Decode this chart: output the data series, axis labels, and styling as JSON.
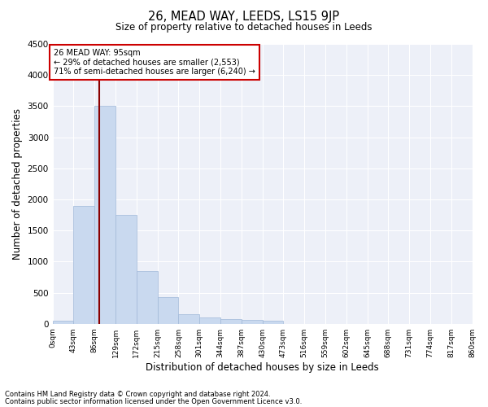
{
  "title": "26, MEAD WAY, LEEDS, LS15 9JP",
  "subtitle": "Size of property relative to detached houses in Leeds",
  "xlabel": "Distribution of detached houses by size in Leeds",
  "ylabel": "Number of detached properties",
  "bin_labels": [
    "0sqm",
    "43sqm",
    "86sqm",
    "129sqm",
    "172sqm",
    "215sqm",
    "258sqm",
    "301sqm",
    "344sqm",
    "387sqm",
    "430sqm",
    "473sqm",
    "516sqm",
    "559sqm",
    "602sqm",
    "645sqm",
    "688sqm",
    "731sqm",
    "774sqm",
    "817sqm",
    "860sqm"
  ],
  "bar_values": [
    50,
    1900,
    3500,
    1750,
    850,
    430,
    150,
    100,
    75,
    60,
    50,
    0,
    0,
    0,
    0,
    0,
    0,
    0,
    0,
    0
  ],
  "bar_color": "#c9d9ef",
  "bar_edgecolor": "#a0b8d8",
  "ylim": [
    0,
    4500
  ],
  "yticks": [
    0,
    500,
    1000,
    1500,
    2000,
    2500,
    3000,
    3500,
    4000,
    4500
  ],
  "vline_x": 95,
  "vline_color": "#8b0000",
  "annotation_title": "26 MEAD WAY: 95sqm",
  "annotation_line1": "← 29% of detached houses are smaller (2,553)",
  "annotation_line2": "71% of semi-detached houses are larger (6,240) →",
  "annotation_box_color": "#ffffff",
  "annotation_box_edgecolor": "#cc0000",
  "footnote1": "Contains HM Land Registry data © Crown copyright and database right 2024.",
  "footnote2": "Contains public sector information licensed under the Open Government Licence v3.0.",
  "bin_width": 43,
  "num_bins": 20
}
